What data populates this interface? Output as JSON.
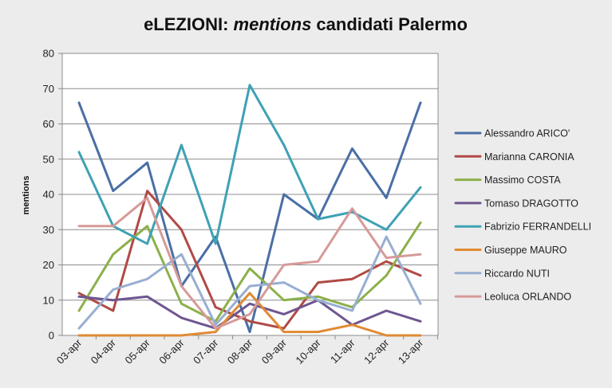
{
  "chart_data": {
    "type": "line",
    "title_parts": [
      {
        "text": "eLEZIONI: ",
        "italic": false
      },
      {
        "text": "mentions",
        "italic": true
      },
      {
        "text": " candidati Palermo",
        "italic": false
      }
    ],
    "xlabel": "",
    "ylabel": "mentions",
    "ylim": [
      0,
      80
    ],
    "yticks": [
      0,
      10,
      20,
      30,
      40,
      50,
      60,
      70,
      80
    ],
    "grid": true,
    "legend_position": "right",
    "categories": [
      "03-apr",
      "04-apr",
      "05-apr",
      "06-apr",
      "07-apr",
      "08-apr",
      "09-apr",
      "10-apr",
      "11-apr",
      "12-apr",
      "13-apr"
    ],
    "series": [
      {
        "name": "Alessandro ARICO'",
        "color": "#4a6fa5",
        "values": [
          66,
          41,
          49,
          14,
          28,
          1,
          40,
          33,
          53,
          39,
          66
        ]
      },
      {
        "name": "Marianna CARONIA",
        "color": "#b04a45",
        "values": [
          12,
          7,
          41,
          30,
          8,
          4,
          2,
          15,
          16,
          21,
          17
        ]
      },
      {
        "name": "Massimo COSTA",
        "color": "#8cb04a",
        "values": [
          7,
          23,
          31,
          9,
          4,
          19,
          10,
          11,
          8,
          17,
          32
        ]
      },
      {
        "name": "Tomaso DRAGOTTO",
        "color": "#6e568f",
        "values": [
          11,
          10,
          11,
          5,
          2,
          9,
          6,
          10,
          3,
          7,
          4
        ]
      },
      {
        "name": "Fabrizio FERRANDELLI",
        "color": "#3fa1b4",
        "values": [
          52,
          31,
          26,
          54,
          26,
          71,
          54,
          33,
          35,
          30,
          42
        ]
      },
      {
        "name": "Giuseppe MAURO",
        "color": "#e08a34",
        "values": [
          0,
          0,
          0,
          0,
          1,
          12,
          1,
          1,
          3,
          0,
          0
        ]
      },
      {
        "name": "Riccardo NUTI",
        "color": "#98aed2",
        "values": [
          2,
          13,
          16,
          23,
          3,
          14,
          15,
          10,
          7,
          28,
          9
        ]
      },
      {
        "name": "Leoluca ORLANDO",
        "color": "#d69a99",
        "values": [
          31,
          31,
          39,
          14,
          2,
          6,
          20,
          21,
          36,
          22,
          23
        ]
      }
    ]
  }
}
